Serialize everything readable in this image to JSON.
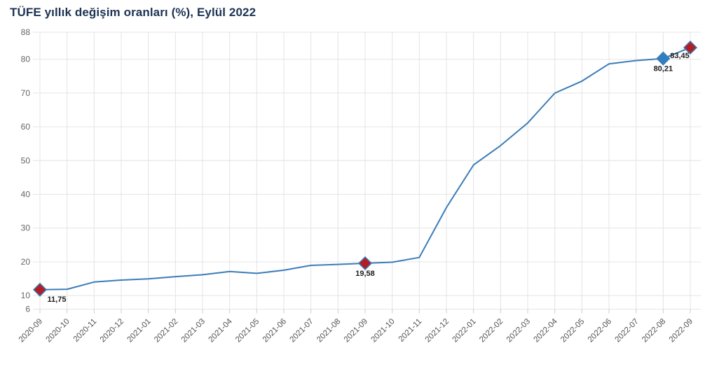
{
  "chart_data": {
    "type": "line",
    "title": "TÜFE yıllık değişim oranları (%), Eylül 2022",
    "xlabel": "",
    "ylabel": "",
    "categories": [
      "2020-09",
      "2020-10",
      "2020-11",
      "2020-12",
      "2021-01",
      "2021-02",
      "2021-03",
      "2021-04",
      "2021-05",
      "2021-06",
      "2021-07",
      "2021-08",
      "2021-09",
      "2021-10",
      "2021-11",
      "2021-12",
      "2022-01",
      "2022-02",
      "2022-03",
      "2022-04",
      "2022-05",
      "2022-06",
      "2022-07",
      "2022-08",
      "2022-09"
    ],
    "series": [
      {
        "name": "TÜFE yıllık değişim oranı (%)",
        "values": [
          11.75,
          11.89,
          14.03,
          14.6,
          14.97,
          15.61,
          16.19,
          17.14,
          16.59,
          17.53,
          18.95,
          19.25,
          19.58,
          19.89,
          21.31,
          36.08,
          48.69,
          54.44,
          61.14,
          69.97,
          73.5,
          78.62,
          79.6,
          80.21,
          83.45
        ]
      }
    ],
    "ylim": [
      6,
      88
    ],
    "yticks": [
      6,
      10,
      20,
      30,
      40,
      50,
      60,
      70,
      80,
      88
    ],
    "grid": true,
    "legend": false,
    "marked_points": [
      {
        "x": "2020-09",
        "value": 11.75,
        "label": "11,75",
        "marker": "diamond",
        "color": "#b11f24",
        "label_position": "below-right"
      },
      {
        "x": "2021-09",
        "value": 19.58,
        "label": "19,58",
        "marker": "diamond",
        "color": "#b11f24",
        "label_position": "below"
      },
      {
        "x": "2022-08",
        "value": 80.21,
        "label": "80,21",
        "marker": "diamond",
        "color": "#2e80c0",
        "label_position": "below"
      },
      {
        "x": "2022-09",
        "value": 83.45,
        "label": "83,45",
        "marker": "diamond",
        "color": "#b11f24",
        "label_position": "below-left"
      }
    ],
    "colors": {
      "line": "#3b7cb8",
      "marker_red": "#b11f24",
      "marker_blue": "#2e80c0",
      "grid": "#e4e4e4",
      "tick": "#cccccc",
      "title": "#1c3353",
      "axis_label": "#5a5a5a"
    }
  }
}
